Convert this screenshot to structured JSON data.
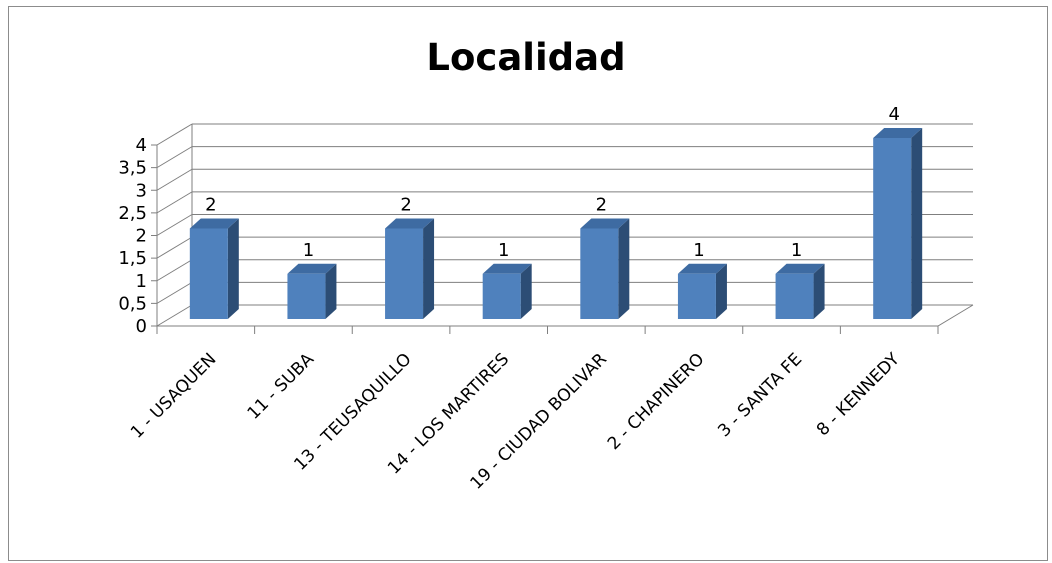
{
  "chart_data": {
    "type": "bar",
    "title": "Localidad",
    "categories": [
      "1 - USAQUEN",
      "11 - SUBA",
      "13 - TEUSAQUILLO",
      "14 - LOS MARTIRES",
      "19 - CIUDAD BOLIVAR",
      "2 - CHAPINERO",
      "3 - SANTA FE",
      "8 - KENNEDY"
    ],
    "values": [
      2,
      1,
      2,
      1,
      2,
      1,
      1,
      4
    ],
    "data_labels": [
      "2",
      "1",
      "2",
      "1",
      "2",
      "1",
      "1",
      "4"
    ],
    "ytick_labels": [
      "0",
      "0,5",
      "1",
      "1,5",
      "2",
      "2,5",
      "3",
      "3,5",
      "4"
    ],
    "ylim": [
      0,
      4
    ],
    "grid": true,
    "legend": false,
    "style": "3d-column",
    "colors": {
      "bar_front": "#4F81BD",
      "bar_side": "#2C4D75",
      "bar_top": "#3E6BA2",
      "grid": "#7f7f7f"
    }
  }
}
